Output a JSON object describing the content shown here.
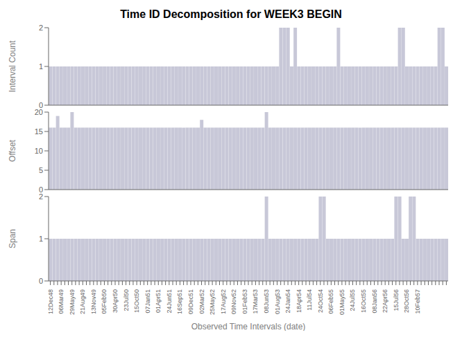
{
  "chart_data": [
    {
      "type": "bar",
      "title": "Time ID Decomposition for WEEK3 BEGIN",
      "ylabel": "Interval Count",
      "color": "#c8c8d8",
      "grid": false,
      "tick_labels": "y",
      "categories": [
        null,
        null,
        null,
        null,
        null,
        null,
        null,
        null,
        null,
        null,
        null,
        null,
        null,
        null,
        null,
        null,
        null,
        null,
        null,
        null,
        null,
        null,
        null,
        null,
        null,
        null,
        null,
        null,
        null,
        null,
        null,
        null,
        null,
        null,
        null,
        null,
        null,
        null,
        null,
        null,
        null,
        null,
        null,
        null,
        null,
        null,
        null,
        null,
        null,
        null,
        null,
        null,
        null,
        null,
        null,
        null,
        null,
        null,
        null,
        null,
        null,
        null,
        null,
        null,
        null,
        null,
        null,
        null,
        null,
        null,
        null,
        null,
        null,
        null,
        null,
        null,
        null,
        null,
        null,
        null,
        null,
        null,
        null,
        null,
        null,
        null,
        null,
        null,
        null,
        null,
        null,
        null,
        null,
        null,
        null,
        null,
        null,
        null,
        null,
        null,
        null,
        null,
        null,
        null,
        null,
        null,
        null,
        null,
        null,
        null,
        null
      ],
      "values": [
        1,
        1,
        1,
        1,
        1,
        1,
        1,
        1,
        1,
        1,
        1,
        1,
        1,
        1,
        1,
        1,
        1,
        1,
        1,
        1,
        1,
        1,
        1,
        1,
        1,
        1,
        1,
        1,
        1,
        1,
        1,
        1,
        1,
        1,
        1,
        1,
        1,
        1,
        1,
        1,
        1,
        1,
        1,
        1,
        1,
        1,
        1,
        1,
        1,
        1,
        1,
        1,
        1,
        1,
        1,
        1,
        1,
        1,
        1,
        1,
        1,
        1,
        1,
        1,
        2,
        2,
        2,
        1,
        2,
        1,
        1,
        1,
        1,
        1,
        1,
        1,
        1,
        1,
        1,
        1,
        2,
        1,
        1,
        1,
        1,
        1,
        1,
        1,
        1,
        1,
        1,
        1,
        1,
        1,
        1,
        1,
        1,
        2,
        2,
        1,
        1,
        1,
        1,
        1,
        1,
        1,
        1,
        1,
        2,
        2,
        1
      ],
      "ylim": [
        0,
        2
      ],
      "yticks": [
        0,
        1,
        2
      ]
    },
    {
      "type": "bar",
      "ylabel": "Offset",
      "color": "#c8c8d8",
      "grid": false,
      "tick_labels": "y",
      "categories": [
        null,
        null,
        null,
        null,
        null,
        null,
        null,
        null,
        null,
        null,
        null,
        null,
        null,
        null,
        null,
        null,
        null,
        null,
        null,
        null,
        null,
        null,
        null,
        null,
        null,
        null,
        null,
        null,
        null,
        null,
        null,
        null,
        null,
        null,
        null,
        null,
        null,
        null,
        null,
        null,
        null,
        null,
        null,
        null,
        null,
        null,
        null,
        null,
        null,
        null,
        null,
        null,
        null,
        null,
        null,
        null,
        null,
        null,
        null,
        null,
        null,
        null,
        null,
        null,
        null,
        null,
        null,
        null,
        null,
        null,
        null,
        null,
        null,
        null,
        null,
        null,
        null,
        null,
        null,
        null,
        null,
        null,
        null,
        null,
        null,
        null,
        null,
        null,
        null,
        null,
        null,
        null,
        null,
        null,
        null,
        null,
        null,
        null,
        null,
        null,
        null,
        null,
        null,
        null,
        null,
        null,
        null,
        null,
        null,
        null,
        null
      ],
      "values": [
        16,
        16,
        19,
        16,
        16,
        16,
        20,
        16,
        16,
        16,
        16,
        16,
        16,
        16,
        16,
        16,
        16,
        16,
        16,
        16,
        16,
        16,
        16,
        16,
        16,
        16,
        16,
        16,
        16,
        16,
        16,
        16,
        16,
        16,
        16,
        16,
        16,
        16,
        16,
        16,
        16,
        16,
        18,
        16,
        16,
        16,
        16,
        16,
        16,
        16,
        16,
        16,
        16,
        16,
        16,
        16,
        16,
        16,
        16,
        16,
        20,
        16,
        16,
        16,
        16,
        16,
        16,
        16,
        16,
        16,
        16,
        16,
        16,
        16,
        16,
        16,
        16,
        16,
        16,
        16,
        16,
        16,
        16,
        16,
        16,
        16,
        16,
        16,
        16,
        16,
        16,
        16,
        16,
        16,
        16,
        16,
        16,
        16,
        16,
        16,
        16,
        16,
        16,
        16,
        16,
        16,
        16,
        16,
        16,
        16,
        16
      ],
      "ylim": [
        0,
        20
      ],
      "yticks": [
        0,
        5,
        10,
        15,
        20
      ]
    },
    {
      "type": "bar",
      "ylabel": "Span",
      "xlabel": "Observed Time Intervals (date)",
      "color": "#c8c8d8",
      "grid": false,
      "categories": [
        "12Dec48",
        null,
        null,
        "06Mar49",
        null,
        null,
        "29May49",
        null,
        null,
        "21Aug49",
        null,
        null,
        "13Nov49",
        null,
        null,
        "05Feb50",
        null,
        null,
        "30Apr50",
        null,
        null,
        "23Jul50",
        null,
        null,
        "15Oct50",
        null,
        null,
        "07Jan51",
        null,
        null,
        "01Apr51",
        null,
        null,
        "24Jun51",
        null,
        null,
        "16Sep51",
        null,
        null,
        "09Dec51",
        null,
        null,
        "02Mar52",
        null,
        null,
        "25May52",
        null,
        null,
        "17Aug52",
        null,
        null,
        "09Nov52",
        null,
        null,
        "01Feb53",
        null,
        null,
        "17Mar53",
        null,
        null,
        "08Jun53",
        null,
        null,
        "01Aug53",
        null,
        null,
        "24Jan54",
        null,
        null,
        "18Apr54",
        null,
        null,
        "11Jul54",
        null,
        null,
        "24Oct54",
        null,
        null,
        "06Feb55",
        null,
        null,
        "01May55",
        null,
        null,
        "24Jul55",
        null,
        null,
        "16Oct55",
        null,
        null,
        "08Jan56",
        null,
        null,
        "22Apr56",
        null,
        null,
        "15Jul56",
        null,
        null,
        "28Oct56",
        null,
        null,
        "10Feb57",
        null,
        null,
        null,
        null,
        null,
        null,
        null,
        null
      ],
      "values": [
        1,
        1,
        1,
        1,
        1,
        1,
        1,
        1,
        1,
        1,
        1,
        1,
        1,
        1,
        1,
        1,
        1,
        1,
        1,
        1,
        1,
        1,
        1,
        1,
        1,
        1,
        1,
        1,
        1,
        1,
        1,
        1,
        1,
        1,
        1,
        1,
        1,
        1,
        1,
        1,
        1,
        1,
        1,
        1,
        1,
        1,
        1,
        1,
        1,
        1,
        1,
        1,
        1,
        1,
        1,
        1,
        1,
        1,
        1,
        1,
        2,
        1,
        1,
        1,
        1,
        1,
        1,
        1,
        1,
        1,
        1,
        1,
        1,
        1,
        1,
        2,
        2,
        1,
        1,
        1,
        1,
        1,
        1,
        1,
        1,
        1,
        1,
        1,
        1,
        1,
        1,
        1,
        1,
        1,
        1,
        1,
        2,
        2,
        1,
        1,
        2,
        2,
        1,
        1,
        1,
        1,
        1,
        1,
        1,
        1,
        1
      ],
      "ylim": [
        0,
        2
      ],
      "yticks": [
        0,
        1,
        2
      ]
    }
  ]
}
